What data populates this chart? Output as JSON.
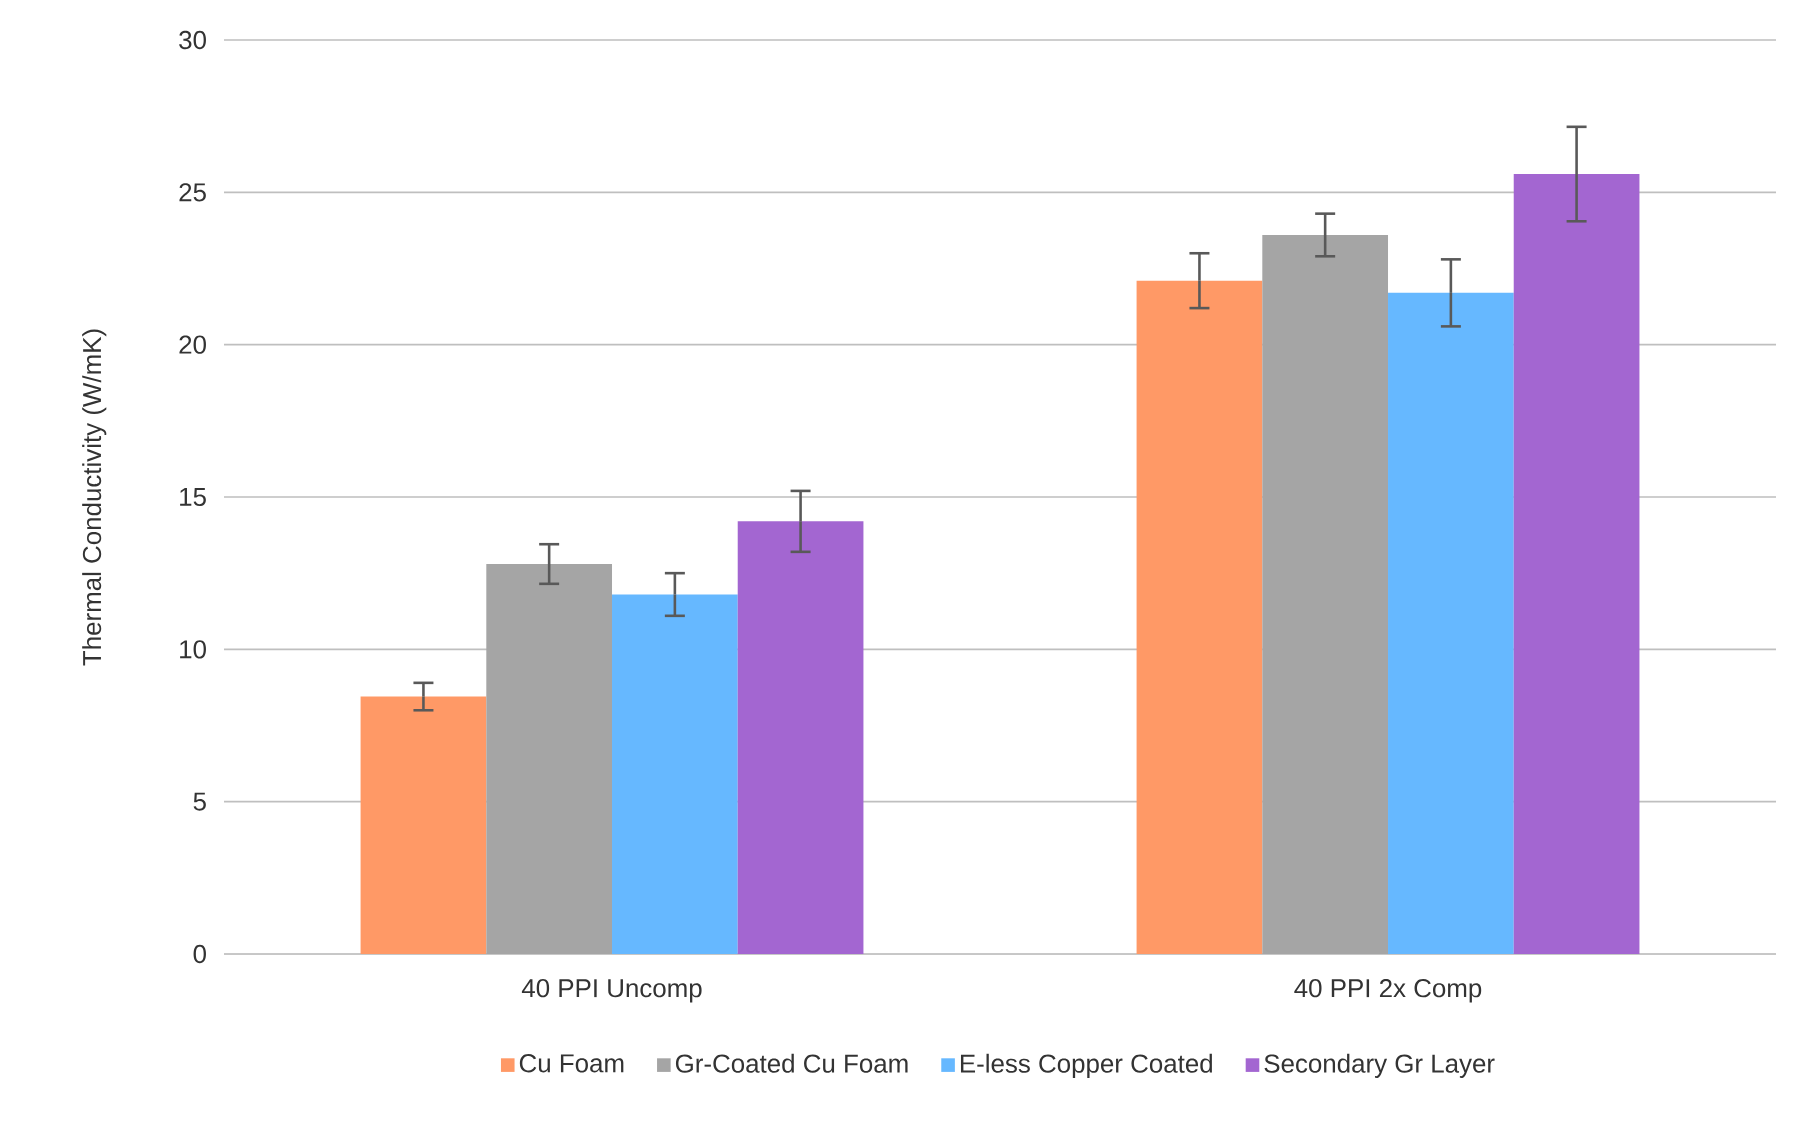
{
  "chart_data": {
    "type": "bar",
    "ylabel": "Thermal Conductivity (W/mK)",
    "categories": [
      "40 PPI Uncomp",
      "40 PPI 2x Comp"
    ],
    "series": [
      {
        "name": "Cu Foam",
        "color": "#ff9966",
        "values": [
          8.45,
          22.1
        ],
        "errors": [
          0.45,
          0.9
        ]
      },
      {
        "name": "Gr-Coated Cu Foam",
        "color": "#a5a5a5",
        "values": [
          12.8,
          23.6
        ],
        "errors": [
          0.65,
          0.7
        ]
      },
      {
        "name": "E-less Copper Coated",
        "color": "#66b8ff",
        "values": [
          11.8,
          21.7
        ],
        "errors": [
          0.7,
          1.1
        ]
      },
      {
        "name": "Secondary Gr Layer",
        "color": "#a366d1",
        "values": [
          14.2,
          25.6
        ],
        "errors": [
          1.0,
          1.55
        ]
      }
    ],
    "ylim": [
      0,
      30
    ],
    "yticks": [
      0,
      5,
      10,
      15,
      20,
      25,
      30
    ],
    "grid": "y",
    "legend": "bottom"
  }
}
